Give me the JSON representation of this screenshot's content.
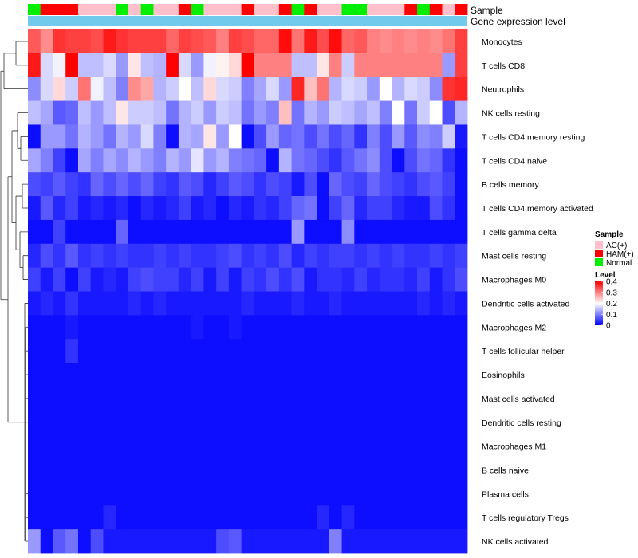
{
  "chart_data": {
    "type": "heatmap",
    "annotation_rows": [
      "Sample",
      "Gene expression level"
    ],
    "sample_legend": {
      "title": "Sample",
      "entries": [
        {
          "label": "AC(+)",
          "color": "#FFC0CB"
        },
        {
          "label": "HAM(+)",
          "color": "#FF0000"
        },
        {
          "label": "Normal",
          "color": "#00EE00"
        }
      ]
    },
    "level_legend": {
      "title": "Level",
      "ticks": [
        "0.4",
        "0.3",
        "0.2",
        "0.1",
        "0"
      ],
      "scale": {
        "min": 0,
        "max": 0.4,
        "low_color": "#0000FF",
        "mid_color": "#FFFFFF",
        "high_color": "#FF0000",
        "midpoint": 0.2
      }
    },
    "gene_expression_color": "#71C9EC",
    "samples": [
      "Normal",
      "HAM(+)",
      "HAM(+)",
      "HAM(+)",
      "AC(+)",
      "AC(+)",
      "AC(+)",
      "Normal",
      "AC(+)",
      "Normal",
      "AC(+)",
      "AC(+)",
      "HAM(+)",
      "Normal",
      "AC(+)",
      "AC(+)",
      "AC(+)",
      "HAM(+)",
      "AC(+)",
      "AC(+)",
      "HAM(+)",
      "Normal",
      "HAM(+)",
      "AC(+)",
      "AC(+)",
      "Normal",
      "Normal",
      "AC(+)",
      "AC(+)",
      "AC(+)",
      "HAM(+)",
      "Normal",
      "HAM(+)",
      "AC(+)",
      "HAM(+)"
    ],
    "rows": [
      "Monocytes",
      "T cells CD8",
      "Neutrophils",
      "NK cells resting",
      "T cells CD4 memory resting",
      "T cells CD4 naive",
      "B cells memory",
      "T cells CD4 memory activated",
      "T cells gamma delta",
      "Mast cells resting",
      "Macrophages M0",
      "Dendritic cells activated",
      "Macrophages M2",
      "T cells follicular helper",
      "Eosinophils",
      "Mast cells activated",
      "Dendritic cells resting",
      "Macrophages M1",
      "B cells naive",
      "Plasma cells",
      "T cells regulatory  Tregs",
      "NK cells activated"
    ],
    "values": [
      [
        0.33,
        0.29,
        0.36,
        0.35,
        0.35,
        0.34,
        0.38,
        0.36,
        0.35,
        0.35,
        0.35,
        0.32,
        0.35,
        0.34,
        0.33,
        0.3,
        0.35,
        0.34,
        0.32,
        0.32,
        0.39,
        0.31,
        0.38,
        0.34,
        0.39,
        0.32,
        0.33,
        0.3,
        0.29,
        0.3,
        0.29,
        0.3,
        0.29,
        0.31,
        0.35
      ],
      [
        0.38,
        0.17,
        0.19,
        0.4,
        0.15,
        0.15,
        0.17,
        0.12,
        0.22,
        0.15,
        0.14,
        0.4,
        0.17,
        0.12,
        0.19,
        0.21,
        0.23,
        0.4,
        0.3,
        0.3,
        0.3,
        0.15,
        0.15,
        0.22,
        0.3,
        0.16,
        0.3,
        0.3,
        0.3,
        0.3,
        0.3,
        0.3,
        0.3,
        0.12,
        0.35
      ],
      [
        0.11,
        0.17,
        0.23,
        0.16,
        0.31,
        0.19,
        0.15,
        0.1,
        0.29,
        0.27,
        0.14,
        0.16,
        0.2,
        0.15,
        0.23,
        0.17,
        0.16,
        0.1,
        0.13,
        0.17,
        0.12,
        0.37,
        0.25,
        0.31,
        0.14,
        0.17,
        0.16,
        0.12,
        0.2,
        0.14,
        0.17,
        0.16,
        0.11,
        0.36,
        0.37
      ],
      [
        0.15,
        0.13,
        0.07,
        0.08,
        0.15,
        0.12,
        0.15,
        0.22,
        0.16,
        0.16,
        0.15,
        0.09,
        0.14,
        0.16,
        0.12,
        0.16,
        0.15,
        0.09,
        0.12,
        0.1,
        0.25,
        0.09,
        0.14,
        0.12,
        0.16,
        0.15,
        0.13,
        0.15,
        0.1,
        0.2,
        0.09,
        0.16,
        0.2,
        0.06,
        0.14
      ],
      [
        0.01,
        0.12,
        0.12,
        0.09,
        0.14,
        0.12,
        0.09,
        0.14,
        0.12,
        0.17,
        0.1,
        0.01,
        0.14,
        0.13,
        0.22,
        0.12,
        0.2,
        0.01,
        0.06,
        0.12,
        0.08,
        0.09,
        0.06,
        0.09,
        0.06,
        0.08,
        0.04,
        0.1,
        0.06,
        0.12,
        0.07,
        0.11,
        0.1,
        0.16,
        0.02
      ],
      [
        0.13,
        0.1,
        0.05,
        0.01,
        0.13,
        0.1,
        0.13,
        0.11,
        0.14,
        0.12,
        0.1,
        0.14,
        0.12,
        0.18,
        0.12,
        0.14,
        0.1,
        0.09,
        0.08,
        0.01,
        0.14,
        0.09,
        0.08,
        0.06,
        0.04,
        0.07,
        0.09,
        0.11,
        0.06,
        0.01,
        0.06,
        0.09,
        0.08,
        0.04,
        0.01
      ],
      [
        0.06,
        0.05,
        0.07,
        0.05,
        0.04,
        0.08,
        0.06,
        0.08,
        0.06,
        0.08,
        0.05,
        0.04,
        0.07,
        0.06,
        0.03,
        0.05,
        0.07,
        0.06,
        0.04,
        0.06,
        0.05,
        0.02,
        0.06,
        0.01,
        0.08,
        0.06,
        0.05,
        0.08,
        0.06,
        0.05,
        0.04,
        0.06,
        0.07,
        0.05,
        0.01
      ],
      [
        0.02,
        0.07,
        0.03,
        0.05,
        0.02,
        0.03,
        0.02,
        0.03,
        0.01,
        0.03,
        0.02,
        0.03,
        0.05,
        0.02,
        0.03,
        0.01,
        0.03,
        0.02,
        0.04,
        0.03,
        0.05,
        0.08,
        0.09,
        0.01,
        0.05,
        0.08,
        0.03,
        0.05,
        0.05,
        0.03,
        0.02,
        0.02,
        0.06,
        0.04,
        0.01
      ],
      [
        0.01,
        0.01,
        0.05,
        0.01,
        0.01,
        0.01,
        0.01,
        0.08,
        0.01,
        0.01,
        0.01,
        0.01,
        0.01,
        0.01,
        0.01,
        0.01,
        0.01,
        0.01,
        0.01,
        0.01,
        0.01,
        0.12,
        0.01,
        0.01,
        0.01,
        0.11,
        0.01,
        0.01,
        0.01,
        0.01,
        0.01,
        0.01,
        0.01,
        0.01,
        0.01
      ],
      [
        0.03,
        0.06,
        0.04,
        0.07,
        0.04,
        0.05,
        0.04,
        0.05,
        0.04,
        0.04,
        0.05,
        0.04,
        0.05,
        0.04,
        0.04,
        0.05,
        0.06,
        0.04,
        0.05,
        0.04,
        0.06,
        0.03,
        0.05,
        0.04,
        0.05,
        0.05,
        0.04,
        0.05,
        0.04,
        0.05,
        0.04,
        0.04,
        0.05,
        0.04,
        0.05
      ],
      [
        0.05,
        0.02,
        0.05,
        0.01,
        0.05,
        0.02,
        0.03,
        0.02,
        0.05,
        0.06,
        0.05,
        0.05,
        0.03,
        0.05,
        0.02,
        0.05,
        0.02,
        0.05,
        0.04,
        0.06,
        0.04,
        0.06,
        0.02,
        0.04,
        0.04,
        0.03,
        0.05,
        0.03,
        0.04,
        0.04,
        0.03,
        0.05,
        0.02,
        0.04,
        0.06
      ],
      [
        0.02,
        0.03,
        0.02,
        0.04,
        0.02,
        0.02,
        0.02,
        0.02,
        0.03,
        0.02,
        0.03,
        0.02,
        0.02,
        0.02,
        0.02,
        0.02,
        0.02,
        0.03,
        0.02,
        0.02,
        0.02,
        0.03,
        0.02,
        0.02,
        0.03,
        0.02,
        0.02,
        0.02,
        0.02,
        0.02,
        0.02,
        0.03,
        0.02,
        0.03,
        0.02
      ],
      [
        0.01,
        0.01,
        0.01,
        0.02,
        0.01,
        0.01,
        0.01,
        0.01,
        0.01,
        0.01,
        0.01,
        0.01,
        0.01,
        0.02,
        0.01,
        0.01,
        0.02,
        0.01,
        0.01,
        0.01,
        0.01,
        0.01,
        0.01,
        0.01,
        0.01,
        0.01,
        0.01,
        0.01,
        0.01,
        0.01,
        0.01,
        0.01,
        0.01,
        0.01,
        0.01
      ],
      [
        0.01,
        0.01,
        0.01,
        0.04,
        0.01,
        0.01,
        0.01,
        0.01,
        0.01,
        0.01,
        0.01,
        0.01,
        0.01,
        0.01,
        0.01,
        0.01,
        0.01,
        0.01,
        0.01,
        0.01,
        0.01,
        0.01,
        0.01,
        0.01,
        0.01,
        0.01,
        0.01,
        0.01,
        0.01,
        0.01,
        0.01,
        0.01,
        0.01,
        0.01,
        0.01
      ],
      [
        0.01,
        0.01,
        0.01,
        0.01,
        0.01,
        0.01,
        0.01,
        0.01,
        0.01,
        0.01,
        0.01,
        0.01,
        0.01,
        0.01,
        0.01,
        0.01,
        0.01,
        0.01,
        0.01,
        0.01,
        0.01,
        0.01,
        0.01,
        0.01,
        0.01,
        0.01,
        0.01,
        0.01,
        0.01,
        0.01,
        0.01,
        0.01,
        0.01,
        0.01,
        0.01
      ],
      [
        0.01,
        0.01,
        0.01,
        0.01,
        0.01,
        0.01,
        0.01,
        0.01,
        0.01,
        0.01,
        0.01,
        0.01,
        0.01,
        0.01,
        0.01,
        0.01,
        0.01,
        0.01,
        0.01,
        0.01,
        0.01,
        0.01,
        0.01,
        0.01,
        0.01,
        0.01,
        0.01,
        0.01,
        0.01,
        0.01,
        0.01,
        0.01,
        0.01,
        0.01,
        0.01
      ],
      [
        0.01,
        0.01,
        0.01,
        0.01,
        0.01,
        0.01,
        0.01,
        0.01,
        0.01,
        0.01,
        0.01,
        0.01,
        0.01,
        0.01,
        0.01,
        0.01,
        0.01,
        0.01,
        0.01,
        0.01,
        0.01,
        0.01,
        0.01,
        0.01,
        0.01,
        0.01,
        0.01,
        0.01,
        0.01,
        0.01,
        0.01,
        0.01,
        0.01,
        0.01,
        0.01
      ],
      [
        0.01,
        0.01,
        0.01,
        0.01,
        0.01,
        0.01,
        0.01,
        0.01,
        0.01,
        0.01,
        0.01,
        0.01,
        0.01,
        0.01,
        0.01,
        0.01,
        0.01,
        0.01,
        0.01,
        0.01,
        0.01,
        0.01,
        0.01,
        0.01,
        0.01,
        0.01,
        0.01,
        0.01,
        0.01,
        0.01,
        0.01,
        0.01,
        0.01,
        0.01,
        0.01
      ],
      [
        0.01,
        0.01,
        0.01,
        0.01,
        0.01,
        0.01,
        0.01,
        0.01,
        0.01,
        0.01,
        0.01,
        0.01,
        0.01,
        0.01,
        0.01,
        0.01,
        0.01,
        0.01,
        0.01,
        0.01,
        0.01,
        0.01,
        0.01,
        0.01,
        0.01,
        0.01,
        0.01,
        0.01,
        0.01,
        0.01,
        0.01,
        0.01,
        0.01,
        0.01,
        0.01
      ],
      [
        0.01,
        0.01,
        0.01,
        0.01,
        0.01,
        0.01,
        0.01,
        0.01,
        0.01,
        0.01,
        0.01,
        0.01,
        0.01,
        0.01,
        0.01,
        0.01,
        0.01,
        0.01,
        0.01,
        0.01,
        0.01,
        0.01,
        0.01,
        0.01,
        0.01,
        0.01,
        0.01,
        0.01,
        0.01,
        0.01,
        0.01,
        0.01,
        0.01,
        0.01,
        0.01
      ],
      [
        0.01,
        0.01,
        0.01,
        0.01,
        0.01,
        0.01,
        0.03,
        0.01,
        0.01,
        0.01,
        0.01,
        0.01,
        0.01,
        0.01,
        0.01,
        0.01,
        0.01,
        0.01,
        0.01,
        0.01,
        0.01,
        0.01,
        0.01,
        0.03,
        0.01,
        0.03,
        0.01,
        0.01,
        0.01,
        0.01,
        0.01,
        0.01,
        0.01,
        0.01,
        0.01
      ],
      [
        0.12,
        0.01,
        0.07,
        0.09,
        0.01,
        0.06,
        0.02,
        0.02,
        0.02,
        0.02,
        0.02,
        0.02,
        0.02,
        0.02,
        0.02,
        0.06,
        0.07,
        0.02,
        0.02,
        0.02,
        0.02,
        0.02,
        0.02,
        0.02,
        0.1,
        0.02,
        0.02,
        0.02,
        0.02,
        0.02,
        0.02,
        0.02,
        0.02,
        0.02,
        0.02
      ]
    ]
  }
}
